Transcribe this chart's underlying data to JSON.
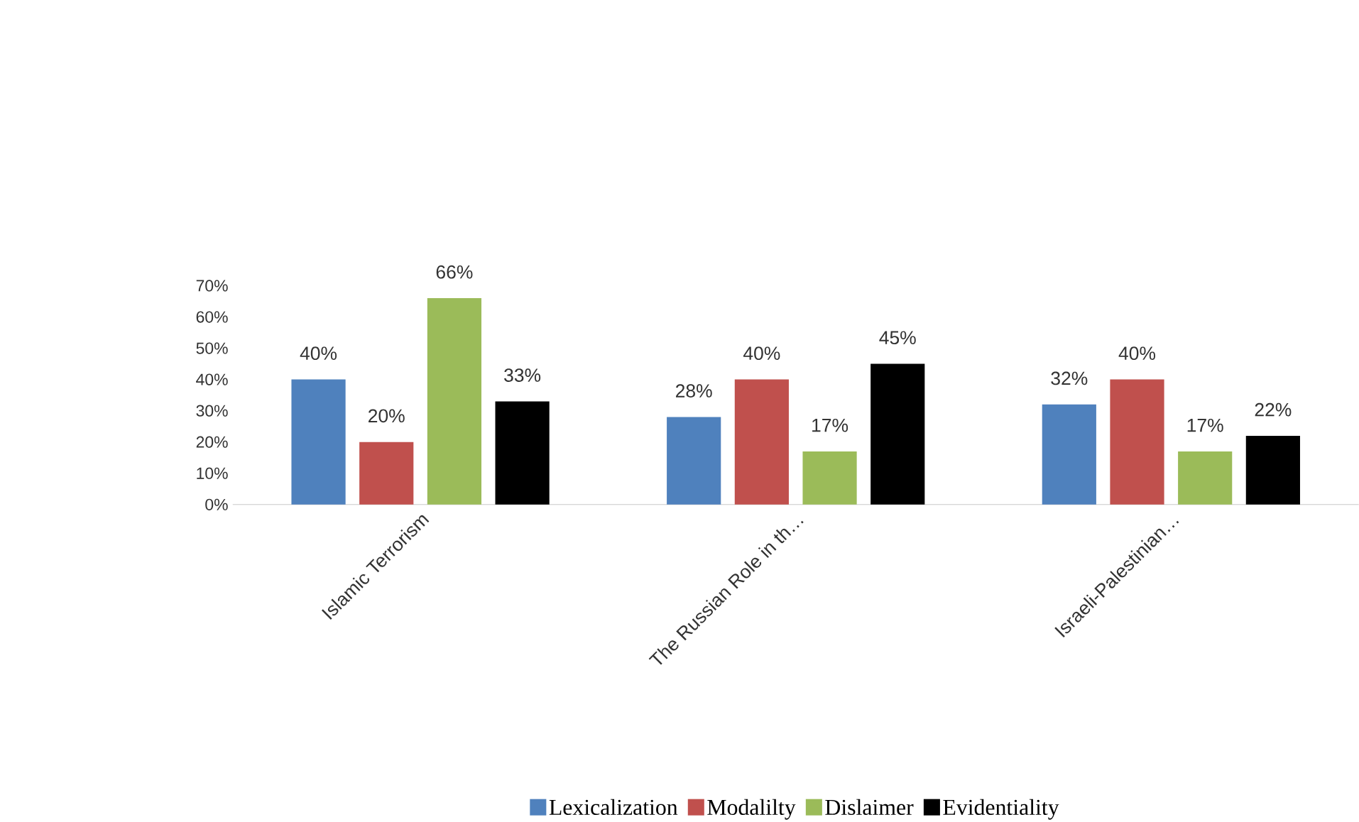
{
  "chart_data": {
    "type": "bar",
    "categories": [
      "Islamic Terrorism",
      "The Russian Role in th…",
      "Israeli-Palestinian…"
    ],
    "series": [
      {
        "name": "Lexicalization",
        "color": "#4f81bd",
        "values": [
          40,
          28,
          32
        ],
        "value_labels": [
          "40%",
          "28%",
          "32%"
        ]
      },
      {
        "name": "Modalilty",
        "color": "#c0504d",
        "values": [
          20,
          40,
          40
        ],
        "value_labels": [
          "20%",
          "40%",
          "40%"
        ]
      },
      {
        "name": "Dislaimer",
        "color": "#9bbb59",
        "values": [
          66,
          17,
          17
        ],
        "value_labels": [
          "66%",
          "17%",
          "17%"
        ]
      },
      {
        "name": "Evidentiality",
        "color": "#000000",
        "values": [
          33,
          45,
          22
        ],
        "value_labels": [
          "33%",
          "45%",
          "22%"
        ]
      }
    ],
    "ylim": [
      0,
      70
    ],
    "yticks": [
      {
        "value": 0,
        "label": "0%"
      },
      {
        "value": 10,
        "label": "10%"
      },
      {
        "value": 20,
        "label": "20%"
      },
      {
        "value": 30,
        "label": "30%"
      },
      {
        "value": 40,
        "label": "40%"
      },
      {
        "value": 50,
        "label": "50%"
      },
      {
        "value": 60,
        "label": "60%"
      },
      {
        "value": 70,
        "label": "70%"
      }
    ],
    "legend": "bottom"
  }
}
